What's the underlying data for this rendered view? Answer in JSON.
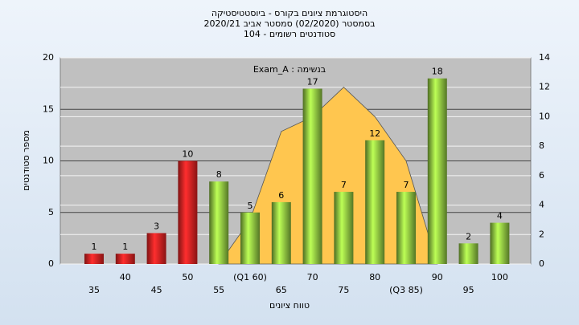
{
  "chart_data": {
    "type": "bar",
    "title": [
      "היסטוגרמת ציונים בקורס - ביוסטטיסטיקה",
      "בסמסטר  (02/2020)  סמסטר אביב 2020/21",
      "סטודנטים רשומים - 104"
    ],
    "annotation": "Exam_A : בנשימה",
    "xlabel": "טווח ציונים",
    "ylabel": "מספר סטודנטים",
    "categories": [
      "35",
      "40",
      "45",
      "50",
      "55",
      "(Q1 60)",
      "65",
      "70",
      "75",
      "80",
      "(Q3 85)",
      "90",
      "95",
      "100"
    ],
    "series": [
      {
        "type": "area",
        "axis": "y2",
        "color": "#ffc64f",
        "values": [
          null,
          null,
          null,
          null,
          0,
          3,
          9,
          10,
          12,
          10,
          7,
          0,
          null,
          null
        ]
      },
      {
        "type": "bar",
        "colors": [
          "#e52222",
          "#e52222",
          "#e52222",
          "#e52222",
          "#8cc540",
          "#8cc540",
          "#8cc540",
          "#8cc540",
          "#8cc540",
          "#8cc540",
          "#8cc540",
          "#8cc540",
          "#8cc540",
          "#8cc540"
        ],
        "values": [
          1,
          1,
          3,
          10,
          8,
          5,
          6,
          17,
          7,
          12,
          7,
          18,
          2,
          4
        ]
      }
    ],
    "ylim": [
      0,
      20
    ],
    "yticks": [
      0,
      5,
      10,
      15,
      20
    ],
    "y2lim": [
      0,
      14
    ],
    "y2ticks": [
      0,
      2,
      4,
      6,
      8,
      10,
      12,
      14
    ],
    "grid": true
  }
}
